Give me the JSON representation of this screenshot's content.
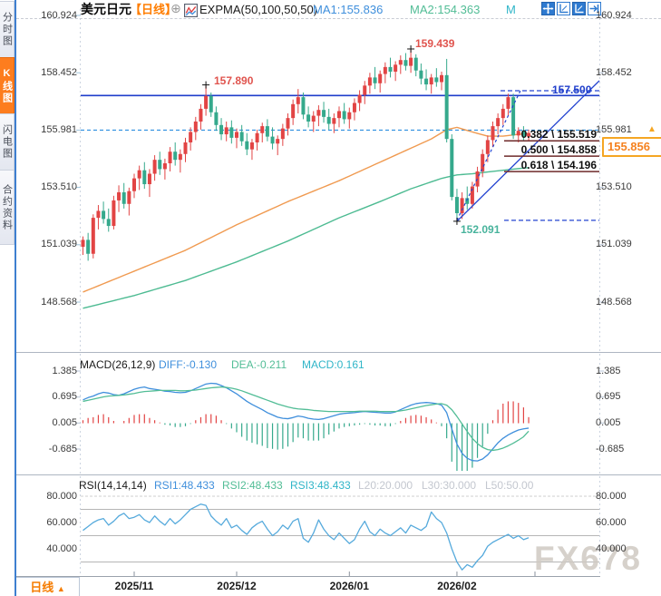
{
  "window": {
    "watermark": "FX678"
  },
  "colors": {
    "up": "#e24444",
    "down": "#35a98c",
    "ema_fast": "#f09a50",
    "ema_slow": "#4dbb92",
    "macd_diff": "#3f8fdc",
    "macd_dea": "#52bd96",
    "rsi_line": "#56aadc",
    "accent_orange": "#ff7d00",
    "trend_blue": "#2444d0",
    "level_blue": "#1f3ecb",
    "price_dash_blue": "#2d8fe0",
    "fib_line": "#6e2a2a",
    "annotation_red": "#e0544e",
    "annotation_teal": "#48b39c"
  },
  "sidebar": {
    "tabs": [
      {
        "label": "分时图",
        "active": false
      },
      {
        "label": "K线图",
        "active": true
      },
      {
        "label": "闪电图",
        "active": false
      },
      {
        "label": "合约资料",
        "active": false
      }
    ]
  },
  "header": {
    "symbol": "美元日元",
    "period_tag": "【日线】",
    "plus_icon": "⊕",
    "indicator": "EXPMA(50,100,50,50)",
    "ma1": "MA1:155.836",
    "ma2": "MA2:154.363",
    "ma3_truncated": "M"
  },
  "price_panel": {
    "axis_labels": [
      "160.924",
      "158.452",
      "155.981",
      "153.510",
      "151.039",
      "148.568"
    ],
    "current_price": "155.856",
    "price_arrow": "▲",
    "annotations": {
      "high1": {
        "text": "157.890",
        "price": 157.89,
        "candle": 24
      },
      "high2": {
        "text": "159.439",
        "price": 159.439,
        "candle": 64
      },
      "low": {
        "text": "152.091",
        "price": 152.091,
        "candle": 73
      },
      "resistance": {
        "text": "157.500"
      }
    },
    "fib": [
      {
        "label": "0.382 \\ 155.519",
        "price": 155.519
      },
      {
        "label": "0.500 \\ 154.858",
        "price": 154.858
      },
      {
        "label": "0.618 \\ 154.196",
        "price": 154.196
      }
    ]
  },
  "macd_panel": {
    "title": "MACD(26,12,9)",
    "diff_label": "DIFF:-0.130",
    "dea_label": "DEA:-0.211",
    "macd_label": "MACD:0.161",
    "axis_labels": [
      "1.385",
      "0.695",
      "0.005",
      "-0.685"
    ]
  },
  "rsi_panel": {
    "title": "RSI(14,14,14)",
    "rsi1_label": "RSI1:48.433",
    "rsi2_label": "RSI2:48.433",
    "rsi3_label": "RSI3:48.433",
    "l20_label": "L20:20.000",
    "l30_label": "L30:30.000",
    "l50_label": "L50:50.00",
    "axis_labels": [
      "80.000",
      "60.000",
      "40.000"
    ]
  },
  "bottom_bar": {
    "period_button": "日线",
    "period_arrow": "▲"
  },
  "chart_data": {
    "type": "candlestick",
    "title": "USD/JPY daily with EXPMA(50,100), MACD(26,12,9), RSI(14,14,14)",
    "price_axis": [
      160.924,
      158.452,
      155.981,
      153.51,
      151.039,
      148.568
    ],
    "macd_axis": [
      1.385,
      0.695,
      0.005,
      -0.685
    ],
    "rsi_axis": [
      80,
      60,
      40
    ],
    "rsi_grid_levels": [
      80,
      70,
      50,
      30
    ],
    "month_ticks": [
      {
        "label": "2025/11",
        "index": 10
      },
      {
        "label": "2025/12",
        "index": 30
      },
      {
        "label": "2026/01",
        "index": 52
      },
      {
        "label": "2026/02",
        "index": 73
      }
    ],
    "levels": {
      "solid_resistance": 157.47,
      "dashed_resistance": 157.68,
      "price_dashed": 155.981,
      "low_dashed": 152.091
    },
    "candles": [
      [
        150.95,
        151.4,
        150.6,
        151.25
      ],
      [
        151.25,
        151.55,
        150.35,
        150.65
      ],
      [
        150.65,
        152.35,
        150.45,
        152.2
      ],
      [
        152.2,
        152.75,
        151.7,
        152.5
      ],
      [
        152.5,
        152.9,
        151.95,
        152.15
      ],
      [
        152.15,
        152.6,
        151.6,
        151.85
      ],
      [
        151.85,
        153.15,
        151.7,
        152.95
      ],
      [
        152.95,
        153.6,
        152.45,
        153.3
      ],
      [
        153.3,
        153.7,
        152.6,
        152.8
      ],
      [
        152.8,
        153.5,
        152.3,
        153.35
      ],
      [
        153.35,
        154.1,
        153.05,
        153.9
      ],
      [
        153.9,
        154.45,
        153.4,
        154.25
      ],
      [
        154.25,
        154.6,
        153.45,
        153.65
      ],
      [
        153.65,
        154.3,
        153.1,
        154.1
      ],
      [
        154.1,
        154.9,
        153.8,
        154.7
      ],
      [
        154.7,
        155.05,
        154.05,
        154.3
      ],
      [
        154.3,
        154.75,
        153.85,
        154.55
      ],
      [
        154.55,
        155.25,
        154.2,
        155.05
      ],
      [
        155.05,
        155.45,
        154.45,
        154.7
      ],
      [
        154.7,
        155.15,
        154.15,
        154.95
      ],
      [
        154.95,
        155.65,
        154.6,
        155.45
      ],
      [
        155.45,
        156.1,
        155.1,
        155.9
      ],
      [
        155.9,
        156.55,
        155.55,
        156.35
      ],
      [
        156.35,
        157.1,
        156.0,
        156.9
      ],
      [
        156.9,
        157.89,
        156.6,
        157.45
      ],
      [
        157.45,
        157.6,
        156.55,
        156.75
      ],
      [
        156.75,
        157.0,
        155.95,
        156.2
      ],
      [
        156.2,
        156.5,
        155.55,
        155.8
      ],
      [
        155.8,
        156.35,
        155.5,
        156.1
      ],
      [
        156.1,
        156.4,
        155.4,
        155.65
      ],
      [
        155.65,
        156.05,
        155.2,
        155.9
      ],
      [
        155.9,
        156.2,
        155.3,
        155.5
      ],
      [
        155.5,
        155.85,
        154.9,
        155.15
      ],
      [
        155.15,
        155.6,
        154.7,
        155.45
      ],
      [
        155.45,
        156.0,
        155.1,
        155.85
      ],
      [
        155.85,
        156.3,
        155.45,
        156.15
      ],
      [
        156.15,
        156.45,
        155.5,
        155.7
      ],
      [
        155.7,
        156.1,
        155.15,
        155.4
      ],
      [
        155.4,
        155.75,
        154.9,
        155.6
      ],
      [
        155.6,
        156.25,
        155.3,
        156.05
      ],
      [
        156.05,
        156.7,
        155.75,
        156.5
      ],
      [
        156.5,
        157.3,
        156.2,
        157.1
      ],
      [
        157.1,
        157.75,
        156.7,
        157.4
      ],
      [
        157.4,
        157.6,
        156.45,
        156.65
      ],
      [
        156.65,
        157.0,
        156.1,
        156.35
      ],
      [
        156.35,
        156.8,
        155.9,
        156.6
      ],
      [
        156.6,
        157.05,
        156.15,
        156.85
      ],
      [
        156.85,
        157.2,
        156.3,
        156.55
      ],
      [
        156.55,
        156.9,
        156.0,
        156.25
      ],
      [
        156.25,
        156.7,
        155.85,
        156.5
      ],
      [
        156.5,
        157.0,
        156.1,
        156.8
      ],
      [
        156.8,
        157.15,
        156.25,
        156.45
      ],
      [
        156.45,
        156.95,
        156.05,
        156.75
      ],
      [
        156.75,
        157.35,
        156.4,
        157.15
      ],
      [
        157.15,
        157.7,
        156.8,
        157.5
      ],
      [
        157.5,
        158.1,
        157.1,
        157.9
      ],
      [
        157.9,
        158.45,
        157.55,
        158.25
      ],
      [
        158.25,
        158.7,
        157.75,
        158.0
      ],
      [
        158.0,
        158.55,
        157.6,
        158.4
      ],
      [
        158.4,
        158.9,
        158.0,
        158.7
      ],
      [
        158.7,
        159.1,
        158.25,
        158.5
      ],
      [
        158.5,
        158.95,
        158.1,
        158.8
      ],
      [
        158.8,
        159.2,
        158.4,
        159.0
      ],
      [
        159.0,
        159.3,
        158.55,
        158.75
      ],
      [
        158.75,
        159.439,
        158.45,
        159.1
      ],
      [
        159.1,
        159.25,
        158.3,
        158.55
      ],
      [
        158.55,
        158.85,
        157.95,
        158.2
      ],
      [
        158.2,
        158.6,
        157.7,
        157.95
      ],
      [
        157.95,
        158.4,
        157.55,
        158.25
      ],
      [
        158.25,
        158.65,
        157.85,
        158.05
      ],
      [
        158.05,
        158.5,
        157.7,
        158.35
      ],
      [
        158.35,
        159.05,
        155.45,
        155.6
      ],
      [
        155.6,
        155.8,
        152.95,
        153.1
      ],
      [
        153.1,
        153.45,
        152.091,
        152.4
      ],
      [
        152.4,
        153.3,
        152.15,
        153.05
      ],
      [
        153.05,
        153.55,
        152.55,
        152.8
      ],
      [
        152.8,
        153.75,
        152.6,
        153.55
      ],
      [
        153.55,
        154.4,
        153.3,
        154.2
      ],
      [
        154.2,
        155.15,
        153.95,
        154.95
      ],
      [
        154.95,
        155.75,
        154.6,
        155.55
      ],
      [
        155.55,
        156.35,
        155.25,
        156.15
      ],
      [
        156.15,
        156.7,
        155.8,
        156.5
      ],
      [
        156.5,
        157.1,
        156.2,
        156.9
      ],
      [
        156.9,
        157.55,
        156.6,
        157.4
      ],
      [
        157.4,
        157.55,
        155.6,
        155.75
      ],
      [
        155.75,
        156.1,
        155.45,
        155.95
      ],
      [
        155.95,
        156.15,
        155.55,
        155.7
      ],
      [
        155.7,
        156.0,
        155.5,
        155.856
      ]
    ],
    "ema_fast_points": [
      [
        0,
        149.0
      ],
      [
        10,
        149.9
      ],
      [
        20,
        150.8
      ],
      [
        30,
        151.9
      ],
      [
        40,
        152.9
      ],
      [
        50,
        153.8
      ],
      [
        55,
        154.3
      ],
      [
        62,
        155.0
      ],
      [
        68,
        155.6
      ],
      [
        71,
        156.0
      ],
      [
        73,
        156.1
      ],
      [
        76,
        155.9
      ],
      [
        79,
        155.72
      ],
      [
        82,
        155.72
      ],
      [
        85,
        155.8
      ],
      [
        87,
        155.84
      ]
    ],
    "ema_slow_points": [
      [
        0,
        148.3
      ],
      [
        10,
        148.85
      ],
      [
        20,
        149.5
      ],
      [
        30,
        150.3
      ],
      [
        40,
        151.2
      ],
      [
        50,
        152.2
      ],
      [
        58,
        152.9
      ],
      [
        64,
        153.45
      ],
      [
        70,
        153.9
      ],
      [
        73,
        154.05
      ],
      [
        76,
        154.1
      ],
      [
        80,
        154.2
      ],
      [
        84,
        154.3
      ],
      [
        87,
        154.363
      ]
    ],
    "macd": {
      "diff": [
        0.62,
        0.68,
        0.72,
        0.78,
        0.82,
        0.8,
        0.76,
        0.74,
        0.78,
        0.84,
        0.9,
        0.94,
        0.96,
        0.92,
        0.9,
        0.88,
        0.85,
        0.84,
        0.82,
        0.81,
        0.82,
        0.86,
        0.92,
        0.98,
        1.04,
        1.06,
        1.05,
        1.0,
        0.94,
        0.86,
        0.78,
        0.68,
        0.58,
        0.5,
        0.43,
        0.36,
        0.28,
        0.22,
        0.16,
        0.13,
        0.12,
        0.15,
        0.19,
        0.17,
        0.13,
        0.11,
        0.1,
        0.12,
        0.16,
        0.2,
        0.24,
        0.26,
        0.27,
        0.28,
        0.3,
        0.31,
        0.3,
        0.29,
        0.28,
        0.27,
        0.27,
        0.3,
        0.36,
        0.42,
        0.48,
        0.52,
        0.54,
        0.55,
        0.54,
        0.52,
        0.48,
        0.28,
        -0.15,
        -0.55,
        -0.8,
        -0.93,
        -0.99,
        -1.0,
        -0.95,
        -0.84,
        -0.68,
        -0.52,
        -0.4,
        -0.31,
        -0.24,
        -0.18,
        -0.15,
        -0.13
      ],
      "dea": [
        0.58,
        0.61,
        0.64,
        0.67,
        0.7,
        0.72,
        0.73,
        0.74,
        0.75,
        0.77,
        0.79,
        0.82,
        0.84,
        0.85,
        0.86,
        0.87,
        0.87,
        0.87,
        0.87,
        0.86,
        0.86,
        0.87,
        0.88,
        0.9,
        0.92,
        0.94,
        0.95,
        0.96,
        0.95,
        0.93,
        0.9,
        0.86,
        0.81,
        0.76,
        0.71,
        0.66,
        0.61,
        0.56,
        0.51,
        0.47,
        0.43,
        0.4,
        0.38,
        0.37,
        0.36,
        0.34,
        0.33,
        0.32,
        0.31,
        0.31,
        0.31,
        0.31,
        0.31,
        0.31,
        0.32,
        0.32,
        0.32,
        0.32,
        0.31,
        0.31,
        0.31,
        0.31,
        0.33,
        0.35,
        0.38,
        0.41,
        0.44,
        0.47,
        0.49,
        0.51,
        0.52,
        0.48,
        0.36,
        0.18,
        -0.02,
        -0.22,
        -0.4,
        -0.54,
        -0.64,
        -0.7,
        -0.72,
        -0.7,
        -0.66,
        -0.6,
        -0.53,
        -0.45,
        -0.36,
        -0.211
      ]
    },
    "rsi": [
      54,
      57,
      60,
      62,
      63,
      58,
      61,
      65,
      67,
      63,
      64,
      66,
      62,
      60,
      65,
      61,
      58,
      63,
      59,
      62,
      66,
      70,
      72,
      74,
      73,
      65,
      61,
      58,
      63,
      56,
      58,
      54,
      51,
      56,
      59,
      61,
      55,
      50,
      53,
      58,
      55,
      61,
      63,
      48,
      45,
      52,
      62,
      55,
      50,
      47,
      52,
      48,
      44,
      47,
      55,
      61,
      53,
      50,
      55,
      52,
      50,
      53,
      56,
      52,
      58,
      56,
      54,
      57,
      68,
      63,
      60,
      52,
      40,
      30,
      24,
      28,
      26,
      31,
      35,
      42,
      45,
      47,
      49,
      51,
      48,
      50,
      47,
      48.433
    ]
  }
}
